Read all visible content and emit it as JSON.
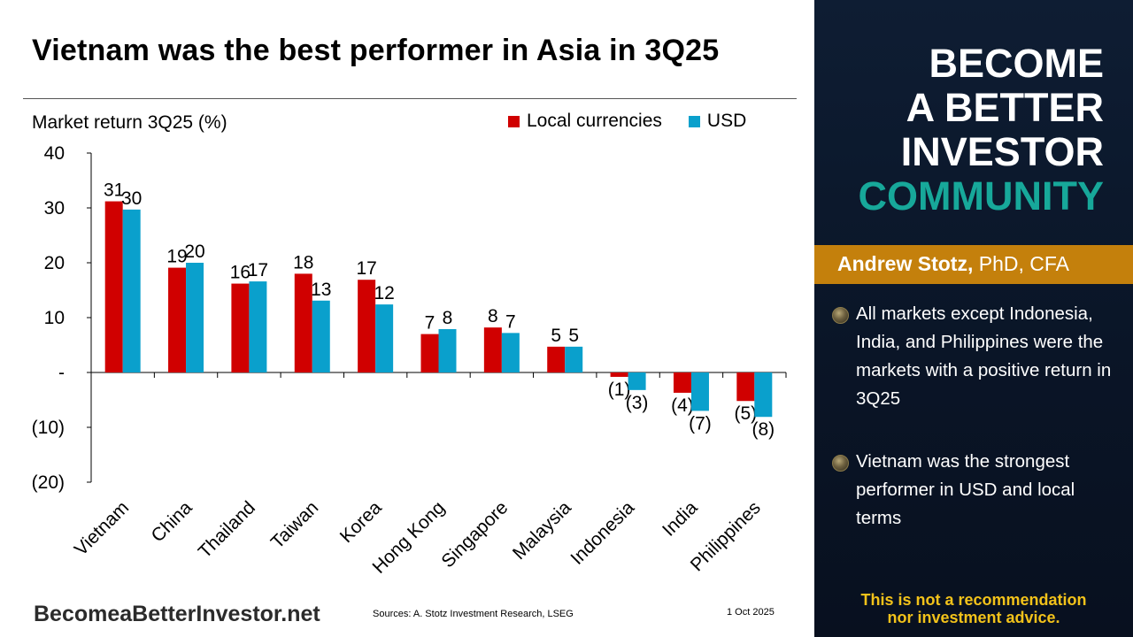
{
  "slide": {
    "title": "Vietnam was the best performer in Asia in 3Q25",
    "brand": "BecomeaBetterInvestor.net",
    "source": "Sources: A. Stotz Investment Research, LSEG",
    "date": "1 Oct 2025"
  },
  "sidebar": {
    "hero_line1": "BECOME",
    "hero_line2": "A BETTER",
    "hero_line3": "INVESTOR",
    "hero_line4": "COMMUNITY",
    "author_name": "Andrew Stotz,",
    "author_credentials": " PhD, CFA",
    "bullets": [
      "All markets except Indonesia, India, and Philippines were the markets with a positive return in 3Q25",
      "Vietnam was the strongest performer in USD and local terms"
    ],
    "disclaimer_line1": "This is not a recommendation",
    "disclaimer_line2": "nor investment advice."
  },
  "colors": {
    "local": "#d00000",
    "usd": "#0aa0cc",
    "accent_teal": "#17a89a",
    "accent_gold": "#c4800c",
    "disclaimer": "#f2c21a"
  },
  "chart_data": {
    "type": "bar",
    "title": "Vietnam was the best performer in Asia in 3Q25",
    "ylabel": "Market return 3Q25 (%)",
    "xlabel": "",
    "ylim": [
      -20,
      40
    ],
    "yticks": [
      40,
      30,
      20,
      10,
      0,
      -10,
      -20
    ],
    "ytick_labels": [
      "40",
      "30",
      "20",
      "10",
      "-",
      "(10)",
      "(20)"
    ],
    "categories": [
      "Vietnam",
      "China",
      "Thailand",
      "Taiwan",
      "Korea",
      "Hong Kong",
      "Singapore",
      "Malaysia",
      "Indonesia",
      "India",
      "Philippines"
    ],
    "series": [
      {
        "name": "Local currencies",
        "values": [
          31.2,
          19.1,
          16.2,
          18.0,
          16.9,
          7.0,
          8.2,
          4.7,
          -0.8,
          -3.7,
          -5.2
        ],
        "labels": [
          "31",
          "19",
          "16",
          "18",
          "17",
          "7",
          "8",
          "5",
          "(1)",
          "(4)",
          "(5)"
        ]
      },
      {
        "name": "USD",
        "values": [
          29.7,
          20.0,
          16.6,
          13.1,
          12.4,
          7.9,
          7.2,
          4.7,
          -3.2,
          -7.0,
          -8.1
        ],
        "labels": [
          "30",
          "20",
          "17",
          "13",
          "12",
          "8",
          "7",
          "5",
          "(3)",
          "(7)",
          "(8)"
        ]
      }
    ],
    "legend": "top-right",
    "grid": false
  }
}
